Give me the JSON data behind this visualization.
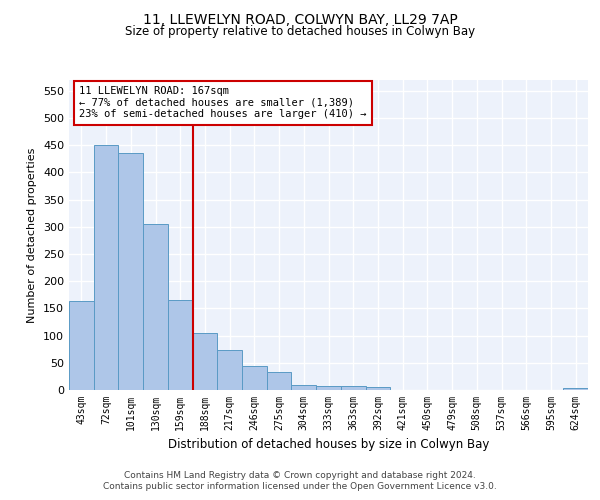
{
  "title1": "11, LLEWELYN ROAD, COLWYN BAY, LL29 7AP",
  "title2": "Size of property relative to detached houses in Colwyn Bay",
  "xlabel": "Distribution of detached houses by size in Colwyn Bay",
  "ylabel": "Number of detached properties",
  "categories": [
    "43sqm",
    "72sqm",
    "101sqm",
    "130sqm",
    "159sqm",
    "188sqm",
    "217sqm",
    "246sqm",
    "275sqm",
    "304sqm",
    "333sqm",
    "363sqm",
    "392sqm",
    "421sqm",
    "450sqm",
    "479sqm",
    "508sqm",
    "537sqm",
    "566sqm",
    "595sqm",
    "624sqm"
  ],
  "values": [
    163,
    450,
    435,
    305,
    165,
    105,
    73,
    44,
    34,
    10,
    8,
    7,
    5,
    0,
    0,
    0,
    0,
    0,
    0,
    0,
    3
  ],
  "bar_color": "#aec6e8",
  "bar_edge_color": "#5a9ac5",
  "vline_x_index": 4.5,
  "annotation_text": "11 LLEWELYN ROAD: 167sqm\n← 77% of detached houses are smaller (1,389)\n23% of semi-detached houses are larger (410) →",
  "annotation_box_color": "#ffffff",
  "annotation_box_edge_color": "#cc0000",
  "vline_color": "#cc0000",
  "ylim": [
    0,
    570
  ],
  "yticks": [
    0,
    50,
    100,
    150,
    200,
    250,
    300,
    350,
    400,
    450,
    500,
    550
  ],
  "background_color": "#edf2fb",
  "grid_color": "#ffffff",
  "fig_bg": "#ffffff",
  "footer1": "Contains HM Land Registry data © Crown copyright and database right 2024.",
  "footer2": "Contains public sector information licensed under the Open Government Licence v3.0."
}
